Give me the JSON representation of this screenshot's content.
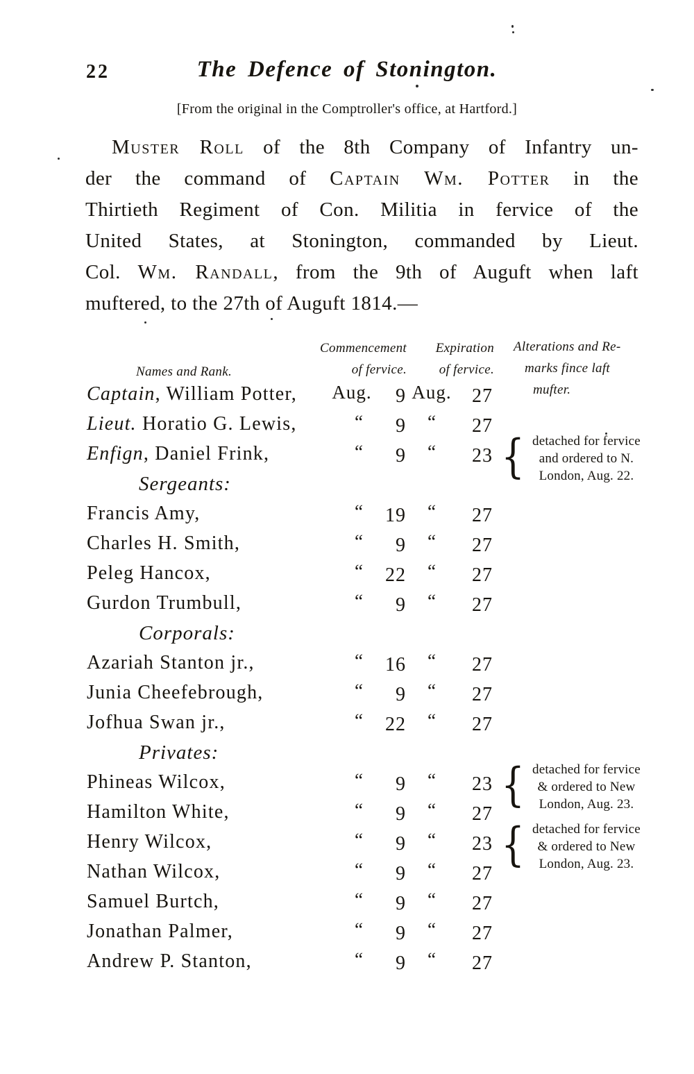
{
  "ink_color": "#17140f",
  "paper_color": "#ffffff",
  "page": {
    "number": "22",
    "running_title": "The Defence of Stonington.",
    "source_note": "[From the original in the Comptroller's office, at Hartford.]"
  },
  "intro_lines": [
    {
      "indent": true,
      "justify": true,
      "segments": [
        {
          "text": "Muster Roll",
          "smallcaps": true
        },
        {
          "text": " of the 8th Company of Infantry un-",
          "smallcaps": false
        }
      ]
    },
    {
      "indent": false,
      "justify": true,
      "segments": [
        {
          "text": "der the command of ",
          "smallcaps": false
        },
        {
          "text": "Captain Wm. Potter",
          "smallcaps": true
        },
        {
          "text": " in the",
          "smallcaps": false
        }
      ]
    },
    {
      "indent": false,
      "justify": true,
      "segments": [
        {
          "text": "Thirtieth Regiment of Con. Militia in fervice of the",
          "smallcaps": false
        }
      ]
    },
    {
      "indent": false,
      "justify": true,
      "segments": [
        {
          "text": "United States, at Stonington, commanded by Lieut.",
          "smallcaps": false
        }
      ]
    },
    {
      "indent": false,
      "justify": true,
      "segments": [
        {
          "text": "Col. ",
          "smallcaps": false
        },
        {
          "text": "Wm. Randall",
          "smallcaps": true
        },
        {
          "text": ", from the 9th of Auguft when laft",
          "smallcaps": false
        }
      ]
    },
    {
      "indent": false,
      "justify": false,
      "segments": [
        {
          "text": "muftered, to the 27th of Auguft 1814.—",
          "smallcaps": false
        }
      ]
    }
  ],
  "table": {
    "header": {
      "names": "Names and Rank.",
      "commencement_line1": "Commencement",
      "commencement_line2": "of fervice.",
      "expiration_line1": "Expiration",
      "expiration_line2": "of fervice.",
      "remarks_line1": "Alterations and Re-",
      "remarks_line2": "marks fince laft",
      "remarks_line3": "mufter."
    },
    "rows": [
      {
        "kind": "entry",
        "rank": "Captain",
        "name": ", William Potter,",
        "commencement_mark": "Aug.",
        "commencement_day": "9",
        "expiration_mark": "Aug.",
        "expiration_day": "27",
        "first": true
      },
      {
        "kind": "entry",
        "rank": "Lieut.",
        "name": " Horatio G. Lewis,",
        "commencement_mark": "“",
        "commencement_day": "9",
        "expiration_mark": "“",
        "expiration_day": "27"
      },
      {
        "kind": "entry",
        "rank": "Enfign",
        "name": ", Daniel Frink,",
        "commencement_mark": "“",
        "commencement_day": "9",
        "expiration_mark": "“",
        "expiration_day": "23",
        "remark": [
          "detached for fervice",
          "and ordered to N.",
          "London, Aug. 22."
        ]
      },
      {
        "kind": "section",
        "label": "Sergeants:"
      },
      {
        "kind": "entry",
        "name": "Francis Amy,",
        "commencement_mark": "“",
        "commencement_day": "19",
        "expiration_mark": "“",
        "expiration_day": "27"
      },
      {
        "kind": "entry",
        "name": "Charles H. Smith,",
        "commencement_mark": "“",
        "commencement_day": "9",
        "expiration_mark": "“",
        "expiration_day": "27"
      },
      {
        "kind": "entry",
        "name": "Peleg Hancox,",
        "commencement_mark": "“",
        "commencement_day": "22",
        "expiration_mark": "“",
        "expiration_day": "27"
      },
      {
        "kind": "entry",
        "name": "Gurdon Trumbull,",
        "commencement_mark": "“",
        "commencement_day": "9",
        "expiration_mark": "“",
        "expiration_day": "27"
      },
      {
        "kind": "section",
        "label": "Corporals:"
      },
      {
        "kind": "entry",
        "name": "Azariah Stanton jr.,",
        "commencement_mark": "“",
        "commencement_day": "16",
        "expiration_mark": "“",
        "expiration_day": "27"
      },
      {
        "kind": "entry",
        "name": "Junia Cheefebrough,",
        "commencement_mark": "“",
        "commencement_day": "9",
        "expiration_mark": "“",
        "expiration_day": "27"
      },
      {
        "kind": "entry",
        "name": "Jofhua Swan jr.,",
        "commencement_mark": "“",
        "commencement_day": "22",
        "expiration_mark": "“",
        "expiration_day": "27"
      },
      {
        "kind": "section",
        "label": "Privates:"
      },
      {
        "kind": "entry",
        "name": "Phineas Wilcox,",
        "commencement_mark": "“",
        "commencement_day": "9",
        "expiration_mark": "“",
        "expiration_day": "23",
        "remark": [
          "detached for fervice",
          "& ordered to New",
          "London, Aug. 23."
        ]
      },
      {
        "kind": "entry",
        "name": "Hamilton White,",
        "commencement_mark": "“",
        "commencement_day": "9",
        "expiration_mark": "“",
        "expiration_day": "27"
      },
      {
        "kind": "entry",
        "name": "Henry Wilcox,",
        "commencement_mark": "“",
        "commencement_day": "9",
        "expiration_mark": "“",
        "expiration_day": "23",
        "remark": [
          "detached for fervice",
          "& ordered to New",
          "London, Aug. 23."
        ]
      },
      {
        "kind": "entry",
        "name": "Nathan Wilcox,",
        "commencement_mark": "“",
        "commencement_day": "9",
        "expiration_mark": "“",
        "expiration_day": "27"
      },
      {
        "kind": "entry",
        "name": "Samuel Burtch,",
        "commencement_mark": "“",
        "commencement_day": "9",
        "expiration_mark": "“",
        "expiration_day": "27"
      },
      {
        "kind": "entry",
        "name": "Jonathan Palmer,",
        "commencement_mark": "“",
        "commencement_day": "9",
        "expiration_mark": "“",
        "expiration_day": "27"
      },
      {
        "kind": "entry",
        "name": "Andrew P. Stanton,",
        "commencement_mark": "“",
        "commencement_day": "9",
        "expiration_mark": "“",
        "expiration_day": "27"
      }
    ]
  }
}
